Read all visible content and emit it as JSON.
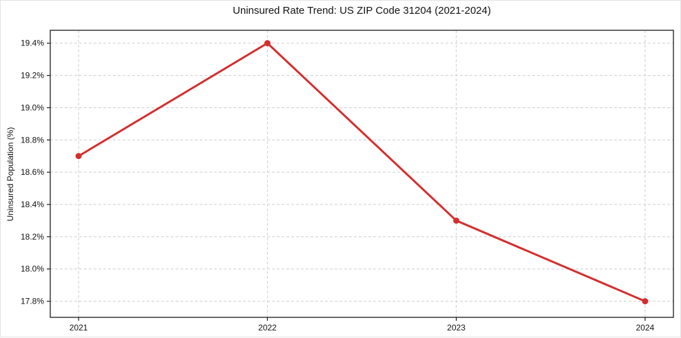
{
  "chart_data": {
    "type": "line",
    "title": "Uninsured Rate Trend: US ZIP Code 31204 (2021-2024)",
    "ylabel": "Uninsured Population (%)",
    "xlabel": "",
    "categories": [
      "2021",
      "2022",
      "2023",
      "2024"
    ],
    "series": [
      {
        "name": "Uninsured rate",
        "values": [
          18.7,
          19.4,
          18.3,
          17.8
        ]
      }
    ],
    "ytick_values": [
      17.8,
      18.0,
      18.2,
      18.4,
      18.6,
      18.8,
      19.0,
      19.2,
      19.4
    ],
    "ytick_labels": [
      "17.8%",
      "18.0%",
      "18.2%",
      "18.4%",
      "18.6%",
      "18.8%",
      "19.0%",
      "19.2%",
      "19.4%"
    ],
    "ylim": [
      17.7,
      19.48
    ],
    "xlim": [
      -0.15,
      3.15
    ],
    "grid": {
      "show": true,
      "style": "dashed"
    },
    "legend": {
      "show": false
    },
    "marker": "circle",
    "colors": {
      "line": "#d32f2f",
      "marker": "#d32f2f",
      "grid": "#cdcdcd",
      "spine": "#1a1a1a",
      "text": "#111111",
      "background": "#ffffff"
    }
  }
}
